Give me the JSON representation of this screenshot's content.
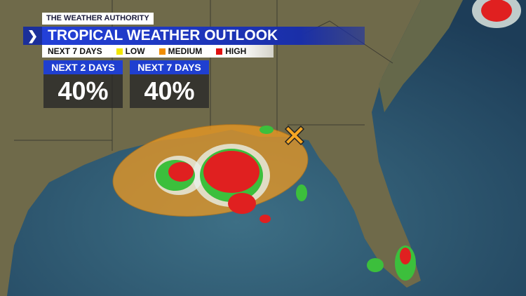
{
  "header": {
    "brand": "THE WEATHER AUTHORITY",
    "title": "TROPICAL WEATHER OUTLOOK"
  },
  "legend": {
    "period": "NEXT 7 DAYS",
    "items": [
      {
        "label": "LOW",
        "color": "#f2e600"
      },
      {
        "label": "MEDIUM",
        "color": "#f08c00"
      },
      {
        "label": "HIGH",
        "color": "#e01010"
      }
    ]
  },
  "outlooks": [
    {
      "label": "NEXT 2 DAYS",
      "value": "40%"
    },
    {
      "label": "NEXT 7 DAYS",
      "value": "40%"
    }
  ]
}
